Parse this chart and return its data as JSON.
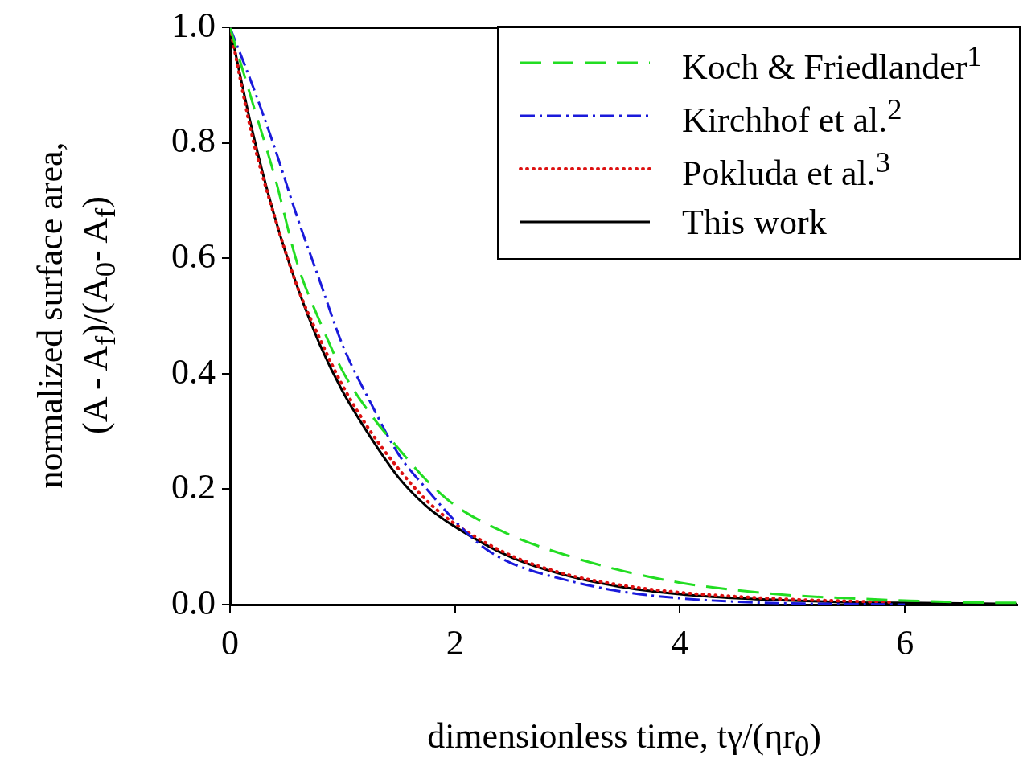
{
  "chart_data": {
    "type": "line",
    "xlabel": "dimensionless time, tγ/(ηr$_{0}$)",
    "ylabel": "normalized surface area,\n(A - A$_{f}$)/(A$_{0}$- A$_{f}$)",
    "xlim": [
      0,
      7
    ],
    "ylim": [
      0,
      1
    ],
    "xticks": [
      0,
      2,
      4,
      6
    ],
    "yticks": [
      {
        "value": 0,
        "label": "0.0"
      },
      {
        "value": 0.2,
        "label": "0.2"
      },
      {
        "value": 0.4,
        "label": "0.4"
      },
      {
        "value": 0.6,
        "label": "0.6"
      },
      {
        "value": 0.8,
        "label": "0.8"
      },
      {
        "value": 1,
        "label": "1.0"
      }
    ],
    "grid": false,
    "legend": "top right",
    "series": [
      {
        "name": "Koch & Friedlander$^{1}$",
        "color": "#22dd22",
        "line_style": "dashed",
        "x": [
          0,
          0.2,
          0.4,
          0.6,
          0.8,
          1,
          1.25,
          1.5,
          1.75,
          2,
          2.5,
          3,
          3.5,
          4,
          4.5,
          5,
          5.5,
          6,
          6.5,
          7
        ],
        "values": [
          1,
          0.87,
          0.74,
          0.59,
          0.49,
          0.405,
          0.33,
          0.27,
          0.215,
          0.172,
          0.12,
          0.085,
          0.058,
          0.038,
          0.025,
          0.016,
          0.011,
          0.007,
          0.004,
          0.003
        ]
      },
      {
        "name": "Kirchhof et al.$^{2}$",
        "color": "#1a1adb",
        "line_style": "dashdot",
        "x": [
          0,
          0.2,
          0.4,
          0.6,
          0.8,
          1,
          1.25,
          1.5,
          1.75,
          2,
          2.25,
          2.5,
          3,
          3.5,
          4,
          4.5,
          5,
          5.5,
          6
        ],
        "values": [
          1,
          0.9,
          0.79,
          0.67,
          0.56,
          0.45,
          0.35,
          0.26,
          0.2,
          0.145,
          0.1,
          0.072,
          0.042,
          0.022,
          0.011,
          0.005,
          0.002,
          0.001,
          0
        ]
      },
      {
        "name": "Pokluda et al.$^{3}$",
        "color": "#dd1111",
        "line_style": "dotted",
        "x": [
          0,
          0.2,
          0.4,
          0.6,
          0.8,
          1,
          1.25,
          1.5,
          1.75,
          2,
          2.5,
          3,
          3.5,
          4,
          4.5,
          5,
          5.5,
          5.9
        ],
        "values": [
          1,
          0.81,
          0.67,
          0.55,
          0.46,
          0.38,
          0.3,
          0.235,
          0.18,
          0.14,
          0.085,
          0.052,
          0.033,
          0.021,
          0.014,
          0.009,
          0.006,
          0.004
        ]
      },
      {
        "name": "This work",
        "color": "#000000",
        "line_style": "solid",
        "x": [
          0,
          0.2,
          0.4,
          0.6,
          0.8,
          1,
          1.25,
          1.5,
          1.75,
          2,
          2.5,
          3,
          3.5,
          4,
          4.5,
          5,
          5.5,
          6,
          7
        ],
        "values": [
          1,
          0.82,
          0.67,
          0.55,
          0.45,
          0.37,
          0.29,
          0.22,
          0.17,
          0.135,
          0.082,
          0.05,
          0.03,
          0.018,
          0.011,
          0.007,
          0.004,
          0.003,
          0.001
        ]
      }
    ]
  }
}
